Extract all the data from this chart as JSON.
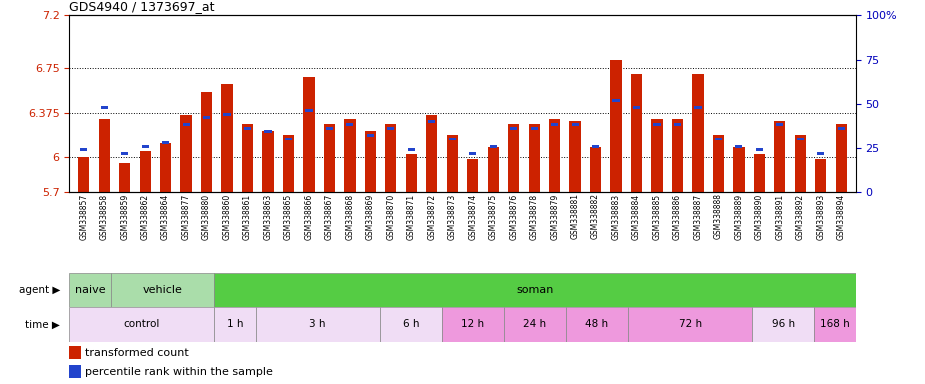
{
  "title": "GDS4940 / 1373697_at",
  "samples": [
    "GSM338857",
    "GSM338858",
    "GSM338859",
    "GSM338862",
    "GSM338864",
    "GSM338877",
    "GSM338880",
    "GSM338860",
    "GSM338861",
    "GSM338863",
    "GSM338865",
    "GSM338866",
    "GSM338867",
    "GSM338868",
    "GSM338869",
    "GSM338870",
    "GSM338871",
    "GSM338872",
    "GSM338873",
    "GSM338874",
    "GSM338875",
    "GSM338876",
    "GSM338878",
    "GSM338879",
    "GSM338881",
    "GSM338882",
    "GSM338883",
    "GSM338884",
    "GSM338885",
    "GSM338886",
    "GSM338887",
    "GSM338888",
    "GSM338889",
    "GSM338890",
    "GSM338891",
    "GSM338892",
    "GSM338893",
    "GSM338894"
  ],
  "red_values": [
    6.0,
    6.32,
    5.95,
    6.05,
    6.12,
    6.35,
    6.55,
    6.62,
    6.28,
    6.22,
    6.18,
    6.68,
    6.28,
    6.32,
    6.22,
    6.28,
    6.02,
    6.35,
    6.18,
    5.98,
    6.08,
    6.28,
    6.28,
    6.32,
    6.3,
    6.08,
    6.82,
    6.7,
    6.32,
    6.32,
    6.7,
    6.18,
    6.08,
    6.02,
    6.3,
    6.18,
    5.98,
    6.28
  ],
  "blue_pcts": [
    24,
    48,
    22,
    26,
    28,
    38,
    42,
    44,
    36,
    34,
    30,
    46,
    36,
    38,
    32,
    36,
    24,
    40,
    30,
    22,
    26,
    36,
    36,
    38,
    38,
    26,
    52,
    48,
    38,
    38,
    48,
    30,
    26,
    24,
    38,
    30,
    22,
    36
  ],
  "ymin": 5.7,
  "ymax": 7.2,
  "yticks": [
    5.7,
    6.0,
    6.375,
    6.75,
    7.2
  ],
  "ytick_labels": [
    "5.7",
    "6",
    "6.375",
    "6.75",
    "7.2"
  ],
  "y2ticks": [
    0,
    25,
    50,
    75,
    100
  ],
  "y2tick_labels": [
    "0",
    "25",
    "50",
    "75",
    "100%"
  ],
  "dotted_lines": [
    6.0,
    6.375,
    6.75
  ],
  "bar_color": "#cc2200",
  "blue_color": "#2244cc",
  "bg_color": "#ffffff",
  "agent_naive": {
    "label": "naive",
    "start": 0,
    "end": 2,
    "color": "#aaddaa"
  },
  "agent_vehicle": {
    "label": "vehicle",
    "start": 2,
    "end": 7,
    "color": "#aaddaa"
  },
  "agent_soman": {
    "label": "soman",
    "start": 7,
    "end": 38,
    "color": "#55cc44"
  },
  "time_groups": [
    {
      "label": "control",
      "start": 0,
      "end": 7,
      "color": "#f0ddf5"
    },
    {
      "label": "1 h",
      "start": 7,
      "end": 9,
      "color": "#f0ddf5"
    },
    {
      "label": "3 h",
      "start": 9,
      "end": 15,
      "color": "#f0ddf5"
    },
    {
      "label": "6 h",
      "start": 15,
      "end": 18,
      "color": "#f0ddf5"
    },
    {
      "label": "12 h",
      "start": 18,
      "end": 21,
      "color": "#ee99ee"
    },
    {
      "label": "24 h",
      "start": 21,
      "end": 24,
      "color": "#ee99ee"
    },
    {
      "label": "48 h",
      "start": 24,
      "end": 27,
      "color": "#ee99ee"
    },
    {
      "label": "72 h",
      "start": 27,
      "end": 33,
      "color": "#ee99ee"
    },
    {
      "label": "96 h",
      "start": 33,
      "end": 36,
      "color": "#ee99ee"
    },
    {
      "label": "168 h",
      "start": 36,
      "end": 38,
      "color": "#ee99ee"
    }
  ],
  "legend_items": [
    {
      "label": "transformed count",
      "color": "#cc2200"
    },
    {
      "label": "percentile rank within the sample",
      "color": "#2244cc"
    }
  ]
}
